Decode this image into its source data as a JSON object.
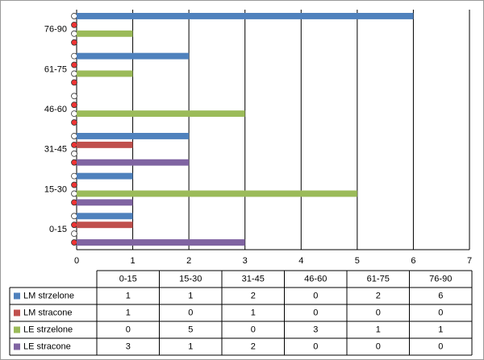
{
  "chart_data": {
    "type": "bar",
    "orientation": "horizontal",
    "categories": [
      "0-15",
      "15-30",
      "31-45",
      "46-60",
      "61-75",
      "76-90"
    ],
    "series": [
      {
        "name": "LM strzelone",
        "color": "#4f81bd",
        "values": [
          1,
          1,
          2,
          0,
          2,
          6
        ]
      },
      {
        "name": "LM stracone",
        "color": "#c0504d",
        "values": [
          1,
          0,
          1,
          0,
          0,
          0
        ]
      },
      {
        "name": "LE strzelone",
        "color": "#9bbb59",
        "values": [
          0,
          5,
          0,
          3,
          1,
          1
        ]
      },
      {
        "name": "LE stracone",
        "color": "#8064a2",
        "values": [
          3,
          1,
          2,
          0,
          0,
          0
        ]
      }
    ],
    "xlim": [
      0,
      7
    ],
    "xticks": [
      0,
      1,
      2,
      3,
      4,
      5,
      6,
      7
    ],
    "grid": true,
    "data_table": true
  }
}
